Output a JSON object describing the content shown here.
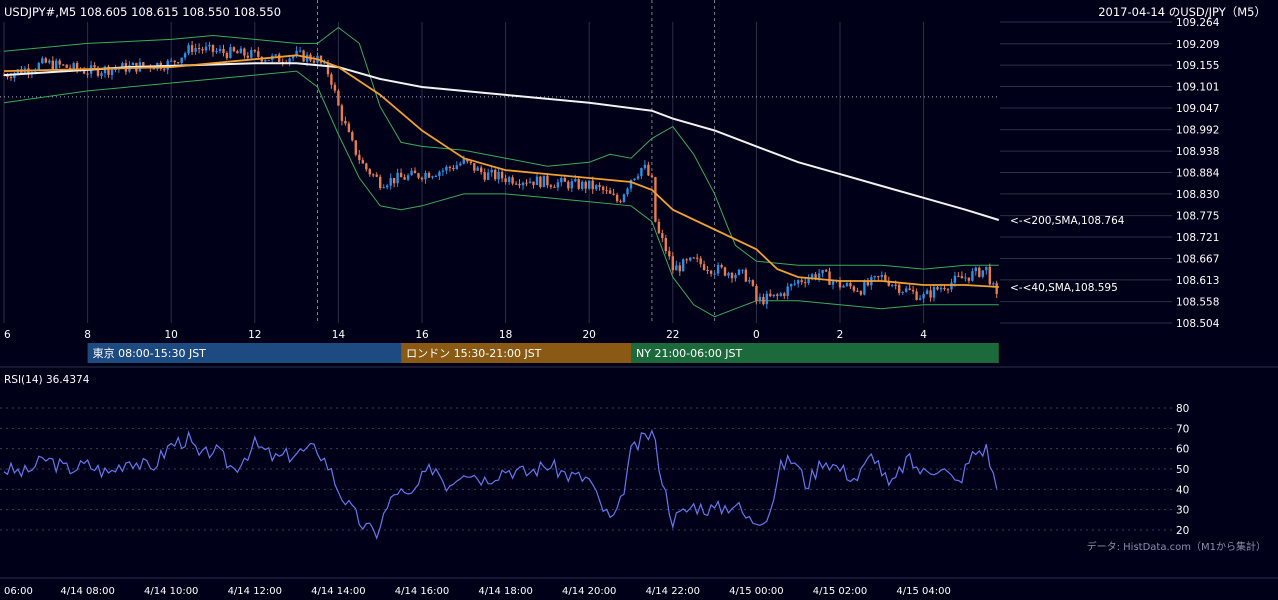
{
  "header": {
    "symbol_info": "USDJPY#,M5 108.605 108.615 108.550 108.550",
    "title_right": "2017-04-14 のUSD/JPY（M5）"
  },
  "colors": {
    "background": "#000018",
    "bull": "#2f8fe0",
    "bear": "#e87b4f",
    "sma40": "#f0a030",
    "sma200": "#f2f2f2",
    "bollinger": "#3daa5a",
    "rsi": "#6677ee",
    "grid": "#2a2f48",
    "tokyo": "#1d4a80",
    "london": "#8a5a14",
    "ny": "#1c6a3c"
  },
  "chart_data": [
    {
      "type": "candlestick",
      "title": "USDJPY#,M5",
      "y_ticks": [
        "109.264",
        "109.209",
        "109.155",
        "109.101",
        "109.047",
        "108.992",
        "108.938",
        "108.884",
        "108.830",
        "108.775",
        "108.721",
        "108.667",
        "108.613",
        "108.558",
        "108.504"
      ],
      "ylim": [
        108.504,
        109.264
      ],
      "x_ticks": [
        "6",
        "8",
        "10",
        "12",
        "14",
        "16",
        "18",
        "20",
        "22",
        "0",
        "2",
        "4"
      ],
      "x_range_hours": [
        6,
        29.8
      ],
      "reference_level": 109.075,
      "session_separators_hours": [
        13.5,
        21.5,
        23.0
      ],
      "close_series": {
        "hours": [
          6.0,
          7.0,
          8.0,
          9.0,
          10.0,
          10.5,
          11.0,
          12.0,
          12.5,
          13.0,
          13.5,
          13.8,
          14.0,
          14.3,
          14.6,
          15.0,
          15.5,
          16.0,
          16.5,
          17.0,
          17.5,
          18.0,
          19.0,
          20.0,
          20.3,
          20.7,
          21.0,
          21.3,
          21.5,
          21.6,
          21.8,
          22.0,
          22.5,
          23.0,
          23.5,
          23.8,
          24.0,
          24.5,
          25.0,
          25.5,
          26.0,
          26.5,
          27.0,
          27.5,
          28.0,
          28.5,
          29.0,
          29.5,
          29.8
        ],
        "values": [
          109.13,
          109.16,
          109.14,
          109.15,
          109.16,
          109.2,
          109.19,
          109.18,
          109.17,
          109.18,
          109.17,
          109.13,
          109.05,
          108.96,
          108.9,
          108.86,
          108.87,
          108.88,
          108.89,
          108.91,
          108.88,
          108.87,
          108.86,
          108.85,
          108.84,
          108.81,
          108.87,
          108.9,
          108.86,
          108.74,
          108.7,
          108.64,
          108.66,
          108.64,
          108.63,
          108.62,
          108.56,
          108.57,
          108.61,
          108.63,
          108.6,
          108.59,
          108.62,
          108.59,
          108.57,
          108.6,
          108.62,
          108.64,
          108.55
        ]
      },
      "sma40": {
        "label": "<-<40,SMA,108.595",
        "hours": [
          6,
          10,
          13,
          13.5,
          14,
          15,
          16,
          17,
          18,
          19,
          20,
          21,
          21.5,
          22,
          23,
          24,
          24.5,
          25,
          26,
          27,
          28,
          29,
          29.8
        ],
        "values": [
          109.14,
          109.15,
          109.18,
          109.17,
          109.15,
          109.08,
          108.99,
          108.92,
          108.89,
          108.88,
          108.87,
          108.86,
          108.84,
          108.79,
          108.74,
          108.69,
          108.64,
          108.62,
          108.61,
          108.61,
          108.6,
          108.6,
          108.595
        ]
      },
      "sma200": {
        "label": "<-<200,SMA,108.764",
        "hours": [
          6,
          9,
          12,
          13,
          14,
          15,
          16,
          18,
          20,
          21.5,
          22,
          23,
          24,
          25,
          26,
          27,
          28,
          29,
          29.8
        ],
        "values": [
          109.13,
          109.15,
          109.16,
          109.16,
          109.15,
          109.12,
          109.1,
          109.08,
          109.06,
          109.04,
          109.02,
          108.99,
          108.95,
          108.91,
          108.88,
          108.85,
          108.82,
          108.79,
          108.764
        ]
      },
      "bollinger_upper": {
        "hours": [
          6,
          8,
          10,
          11,
          12,
          13,
          13.5,
          14,
          14.5,
          15,
          15.5,
          16,
          17,
          18,
          19,
          20,
          20.5,
          21,
          21.3,
          21.5,
          22,
          22.5,
          23,
          23.3,
          23.5,
          24,
          25,
          26,
          27,
          28,
          29,
          29.8
        ],
        "values": [
          109.19,
          109.21,
          109.22,
          109.23,
          109.22,
          109.21,
          109.21,
          109.25,
          109.21,
          109.05,
          108.96,
          108.95,
          108.94,
          108.92,
          108.9,
          108.91,
          108.93,
          108.92,
          108.95,
          108.97,
          109.0,
          108.93,
          108.83,
          108.75,
          108.7,
          108.66,
          108.65,
          108.65,
          108.65,
          108.64,
          108.65,
          108.65
        ]
      },
      "bollinger_lower": {
        "hours": [
          6,
          8,
          10,
          12,
          13,
          13.5,
          14,
          14.5,
          15,
          15.5,
          16,
          17,
          18,
          19,
          20,
          21,
          21.5,
          22,
          22.5,
          23,
          23.5,
          24,
          25,
          26,
          27,
          28,
          29,
          29.8
        ],
        "values": [
          109.06,
          109.09,
          109.11,
          109.13,
          109.14,
          109.1,
          108.98,
          108.87,
          108.8,
          108.79,
          108.8,
          108.83,
          108.83,
          108.82,
          108.81,
          108.8,
          108.76,
          108.62,
          108.55,
          108.52,
          108.54,
          108.56,
          108.56,
          108.55,
          108.54,
          108.55,
          108.55,
          108.55
        ]
      }
    },
    {
      "type": "line",
      "title": "RSI(14) 36.4374",
      "y_ticks": [
        "80",
        "70",
        "60",
        "50",
        "40",
        "30",
        "20"
      ],
      "ylim": [
        15,
        85
      ],
      "series": [
        {
          "name": "RSI(14)",
          "hours": [
            6.0,
            6.5,
            7.0,
            7.5,
            8.0,
            8.5,
            9.0,
            9.5,
            10.0,
            10.4,
            10.7,
            11.0,
            11.5,
            12.0,
            12.5,
            13.0,
            13.5,
            13.8,
            14.0,
            14.3,
            14.6,
            14.9,
            15.1,
            15.4,
            15.7,
            16.0,
            16.3,
            16.6,
            17.0,
            17.5,
            18.0,
            18.5,
            19.0,
            19.5,
            20.0,
            20.2,
            20.5,
            20.7,
            21.0,
            21.3,
            21.5,
            21.6,
            21.8,
            22.0,
            22.5,
            23.0,
            23.5,
            23.8,
            24.0,
            24.3,
            24.6,
            24.9,
            25.2,
            25.6,
            26.0,
            26.4,
            26.8,
            27.2,
            27.6,
            28.0,
            28.4,
            28.8,
            29.2,
            29.5,
            29.8
          ],
          "values": [
            50,
            48,
            55,
            50,
            52,
            48,
            55,
            50,
            62,
            65,
            55,
            60,
            50,
            62,
            55,
            58,
            60,
            50,
            40,
            30,
            22,
            18,
            28,
            40,
            35,
            45,
            52,
            42,
            50,
            45,
            50,
            48,
            52,
            47,
            45,
            35,
            25,
            28,
            58,
            65,
            68,
            60,
            40,
            25,
            32,
            30,
            33,
            25,
            25,
            28,
            52,
            55,
            42,
            55,
            50,
            45,
            58,
            40,
            55,
            48,
            52,
            42,
            58,
            60,
            36.4374
          ]
        }
      ]
    }
  ],
  "annotations": {
    "sma200_label": "<-<200,SMA,108.764",
    "sma40_label": "<-<40,SMA,108.595",
    "data_source": "データ: HistData.com（M1から集計）"
  },
  "sessions": [
    {
      "label": "東京 08:00-15:30 JST",
      "start_hour": 8.0,
      "end_hour": 15.5,
      "color": "#1d4a80"
    },
    {
      "label": "ロンドン 15:30-21:00 JST",
      "start_hour": 15.5,
      "end_hour": 21.0,
      "color": "#8a5a14"
    },
    {
      "label": "NY 21:00-06:00 JST",
      "start_hour": 21.0,
      "end_hour": 29.8,
      "color": "#1c6a3c"
    }
  ],
  "rsi_panel": {
    "label": "RSI(14) 36.4374"
  },
  "time_axis": {
    "labels": [
      "06:00",
      "4/14 08:00",
      "4/14 10:00",
      "4/14 12:00",
      "4/14 14:00",
      "4/14 16:00",
      "4/14 18:00",
      "4/14 20:00",
      "4/14 22:00",
      "4/15 00:00",
      "4/15 02:00",
      "4/15 04:00"
    ]
  }
}
